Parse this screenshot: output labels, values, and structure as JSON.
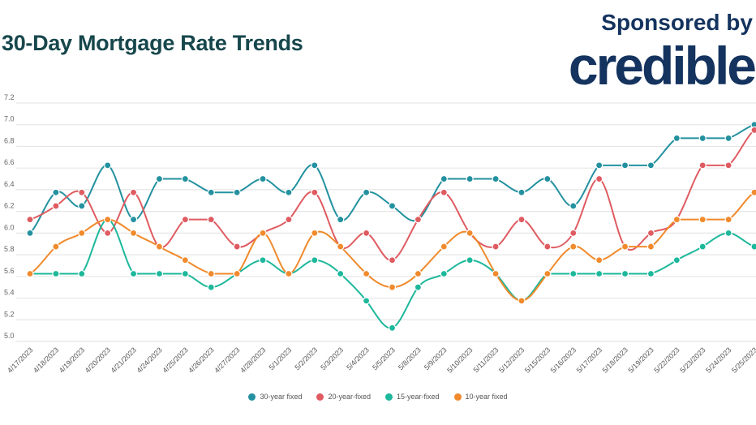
{
  "header": {
    "title": "30-Day Mortgage Rate Trends",
    "sponsor_label": "Sponsored by",
    "brand": "credible"
  },
  "chart_data": {
    "type": "line",
    "title": "30-Day Mortgage Rate Trends",
    "xlabel": "",
    "ylabel": "",
    "ylim": [
      5.0,
      7.2
    ],
    "yticks": [
      "5.0",
      "5.2",
      "5.4",
      "5.6",
      "5.8",
      "6.0",
      "6.2",
      "6.4",
      "6.6",
      "6.8",
      "7.0",
      "7.2"
    ],
    "grid": true,
    "legend_position": "bottom",
    "categories": [
      "4/17/2023",
      "4/18/2023",
      "4/19/2023",
      "4/20/2023",
      "4/21/2023",
      "4/24/2023",
      "4/25/2023",
      "4/26/2023",
      "4/27/2023",
      "4/28/2023",
      "5/1/2023",
      "5/2/2023",
      "5/3/2023",
      "5/4/2023",
      "5/5/2023",
      "5/8/2023",
      "5/9/2023",
      "5/10/2023",
      "5/11/2023",
      "5/12/2023",
      "5/15/2023",
      "5/16/2023",
      "5/17/2023",
      "5/18/2023",
      "5/19/2023",
      "5/22/2023",
      "5/23/2023",
      "5/24/2023",
      "5/25/2023"
    ],
    "series": [
      {
        "name": "30-year fixed",
        "color": "#23919f",
        "values": [
          6.0,
          6.375,
          6.25,
          6.625,
          6.125,
          6.5,
          6.5,
          6.375,
          6.375,
          6.5,
          6.375,
          6.625,
          6.125,
          6.375,
          6.25,
          6.125,
          6.5,
          6.5,
          6.5,
          6.375,
          6.5,
          6.25,
          6.625,
          6.625,
          6.625,
          6.875,
          6.875,
          6.875,
          7.0
        ]
      },
      {
        "name": "20-year-fixed",
        "color": "#df5b61",
        "values": [
          6.125,
          6.25,
          6.375,
          6.0,
          6.375,
          5.875,
          6.125,
          6.125,
          5.875,
          6.0,
          6.125,
          6.375,
          5.875,
          6.0,
          5.75,
          6.125,
          6.375,
          6.0,
          5.875,
          6.125,
          5.875,
          6.0,
          6.5,
          5.875,
          6.0,
          6.125,
          6.625,
          6.625,
          6.95
        ]
      },
      {
        "name": "15-year-fixed",
        "color": "#1db89b",
        "values": [
          5.625,
          5.625,
          5.625,
          6.125,
          5.625,
          5.625,
          5.625,
          5.5,
          5.625,
          5.75,
          5.625,
          5.75,
          5.625,
          5.375,
          5.125,
          5.5,
          5.625,
          5.75,
          5.625,
          5.375,
          5.625,
          5.625,
          5.625,
          5.625,
          5.625,
          5.75,
          5.875,
          6.0,
          5.875
        ]
      },
      {
        "name": "10-year fixed",
        "color": "#f08a2c",
        "values": [
          5.625,
          5.875,
          6.0,
          6.125,
          6.0,
          5.875,
          5.75,
          5.625,
          5.625,
          6.0,
          5.625,
          6.0,
          5.875,
          5.625,
          5.5,
          5.625,
          5.875,
          6.0,
          5.625,
          5.375,
          5.625,
          5.875,
          5.75,
          5.875,
          5.875,
          6.125,
          6.125,
          6.125,
          6.375
        ]
      }
    ]
  }
}
